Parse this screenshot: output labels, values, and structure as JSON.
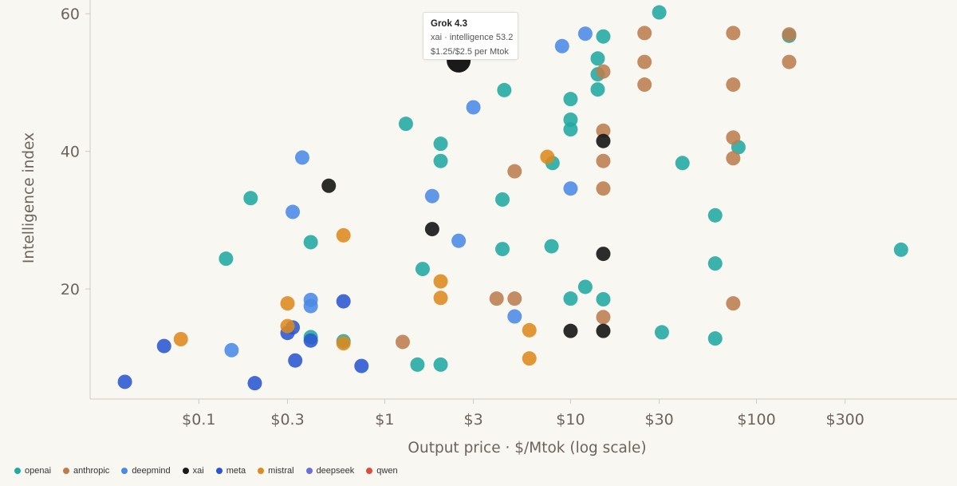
{
  "chart_data": {
    "type": "scatter",
    "xlabel": "Output price · $/Mtok (log scale)",
    "ylabel": "Intelligence index",
    "x_scale": "log",
    "xlim": [
      0.026,
      1200
    ],
    "ylim": [
      4,
      62
    ],
    "x_ticks": [
      {
        "value": 0.1,
        "label": "$0.1"
      },
      {
        "value": 0.3,
        "label": "$0.3"
      },
      {
        "value": 1,
        "label": "$1"
      },
      {
        "value": 3,
        "label": "$3"
      },
      {
        "value": 10,
        "label": "$10"
      },
      {
        "value": 30,
        "label": "$30"
      },
      {
        "value": 100,
        "label": "$100"
      },
      {
        "value": 300,
        "label": "$300"
      }
    ],
    "y_ticks": [
      {
        "value": 20,
        "label": "20"
      },
      {
        "value": 40,
        "label": "40"
      },
      {
        "value": 60,
        "label": "60"
      }
    ],
    "grid": false,
    "legend_position": "bottom-left",
    "series": [
      {
        "name": "openai",
        "color": "#20aaa2",
        "points": [
          [
            0.14,
            24.4
          ],
          [
            0.19,
            33.2
          ],
          [
            0.4,
            26.8
          ],
          [
            0.4,
            13.0
          ],
          [
            0.6,
            12.4
          ],
          [
            1.3,
            44.0
          ],
          [
            1.6,
            22.9
          ],
          [
            1.5,
            9.0
          ],
          [
            2.0,
            41.1
          ],
          [
            2.0,
            38.6
          ],
          [
            2.0,
            9.0
          ],
          [
            4.4,
            48.9
          ],
          [
            4.3,
            33.0
          ],
          [
            4.3,
            25.8
          ],
          [
            8.0,
            38.3
          ],
          [
            7.9,
            26.2
          ],
          [
            10.0,
            47.6
          ],
          [
            10.0,
            44.6
          ],
          [
            10.0,
            43.2
          ],
          [
            10.0,
            18.6
          ],
          [
            12.0,
            20.3
          ],
          [
            14.0,
            53.5
          ],
          [
            14.0,
            51.2
          ],
          [
            14.0,
            49.0
          ],
          [
            15.0,
            56.7
          ],
          [
            15.0,
            18.5
          ],
          [
            30.0,
            60.2
          ],
          [
            31.0,
            13.7
          ],
          [
            40.0,
            38.3
          ],
          [
            60.0,
            30.7
          ],
          [
            60.0,
            23.7
          ],
          [
            60.0,
            12.8
          ],
          [
            80.0,
            40.6
          ],
          [
            150.0,
            56.8
          ],
          [
            600.0,
            25.7
          ]
        ]
      },
      {
        "name": "anthropic",
        "color": "#bb7d4e",
        "points": [
          [
            1.25,
            12.3
          ],
          [
            4.0,
            18.6
          ],
          [
            5.0,
            37.1
          ],
          [
            5.0,
            18.6
          ],
          [
            15.0,
            51.6
          ],
          [
            15.0,
            43.0
          ],
          [
            15.0,
            38.6
          ],
          [
            15.0,
            34.6
          ],
          [
            15.0,
            15.9
          ],
          [
            25.0,
            57.2
          ],
          [
            25.0,
            53.0
          ],
          [
            25.0,
            49.7
          ],
          [
            75.0,
            57.2
          ],
          [
            75.0,
            49.7
          ],
          [
            75.0,
            42.0
          ],
          [
            75.0,
            39.0
          ],
          [
            75.0,
            17.9
          ],
          [
            150.0,
            57.0
          ],
          [
            150.0,
            53.0
          ]
        ]
      },
      {
        "name": "deepmind",
        "color": "#4a8ae6",
        "points": [
          [
            0.15,
            11.1
          ],
          [
            0.32,
            31.2
          ],
          [
            0.36,
            39.1
          ],
          [
            0.4,
            18.4
          ],
          [
            0.4,
            17.5
          ],
          [
            1.8,
            33.5
          ],
          [
            2.5,
            27.0
          ],
          [
            3.0,
            46.4
          ],
          [
            5.0,
            16.0
          ],
          [
            9.0,
            55.3
          ],
          [
            10.0,
            34.6
          ],
          [
            12.0,
            57.1
          ]
        ]
      },
      {
        "name": "xai",
        "color": "#1a1a1a",
        "points": [
          [
            0.5,
            35.0
          ],
          [
            1.8,
            28.7
          ],
          [
            10.0,
            13.9
          ],
          [
            15.0,
            41.5
          ],
          [
            15.0,
            25.1
          ],
          [
            15.0,
            13.9
          ]
        ]
      },
      {
        "name": "meta",
        "color": "#2a56d0",
        "points": [
          [
            0.04,
            6.5
          ],
          [
            0.065,
            11.7
          ],
          [
            0.2,
            6.3
          ],
          [
            0.3,
            13.6
          ],
          [
            0.32,
            14.4
          ],
          [
            0.33,
            9.6
          ],
          [
            0.4,
            12.5
          ],
          [
            0.6,
            18.2
          ],
          [
            0.75,
            8.8
          ]
        ]
      },
      {
        "name": "mistral",
        "color": "#dd8a1e",
        "points": [
          [
            0.08,
            12.7
          ],
          [
            0.3,
            17.9
          ],
          [
            0.3,
            14.6
          ],
          [
            0.6,
            27.8
          ],
          [
            0.6,
            12.1
          ],
          [
            2.0,
            21.1
          ],
          [
            2.0,
            18.7
          ],
          [
            6.0,
            14.0
          ],
          [
            6.0,
            9.9
          ],
          [
            7.5,
            39.2
          ]
        ]
      },
      {
        "name": "deepseek",
        "color": "#6a6ee0",
        "points": []
      },
      {
        "name": "qwen",
        "color": "#e04b3a",
        "points": []
      }
    ],
    "highlighted_point": {
      "series": "xai",
      "x": 2.5,
      "y": 53.2
    }
  },
  "tooltip": {
    "title": "Grok 4.3",
    "line1": "xai · intelligence 53.2",
    "line2": "$1.25/$2.5 per Mtok"
  }
}
